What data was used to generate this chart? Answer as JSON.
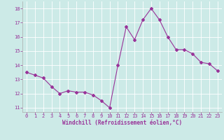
{
  "x": [
    0,
    1,
    2,
    3,
    4,
    5,
    6,
    7,
    8,
    9,
    10,
    11,
    12,
    13,
    14,
    15,
    16,
    17,
    18,
    19,
    20,
    21,
    22,
    23
  ],
  "y": [
    13.5,
    13.3,
    13.1,
    12.5,
    12.0,
    12.2,
    12.1,
    12.1,
    11.9,
    11.5,
    11.0,
    14.0,
    16.7,
    15.8,
    17.2,
    18.0,
    17.2,
    16.0,
    15.1,
    15.1,
    14.8,
    14.2,
    14.1,
    13.6
  ],
  "line_color": "#993399",
  "marker": "D",
  "marker_size": 2.0,
  "bg_color": "#cceae7",
  "grid_color": "#ffffff",
  "xlabel": "Windchill (Refroidissement éolien,°C)",
  "xlabel_color": "#993399",
  "tick_color": "#993399",
  "ylim": [
    10.7,
    18.5
  ],
  "xlim": [
    -0.5,
    23.5
  ],
  "yticks": [
    11,
    12,
    13,
    14,
    15,
    16,
    17,
    18
  ],
  "xticks": [
    0,
    1,
    2,
    3,
    4,
    5,
    6,
    7,
    8,
    9,
    10,
    11,
    12,
    13,
    14,
    15,
    16,
    17,
    18,
    19,
    20,
    21,
    22,
    23
  ]
}
